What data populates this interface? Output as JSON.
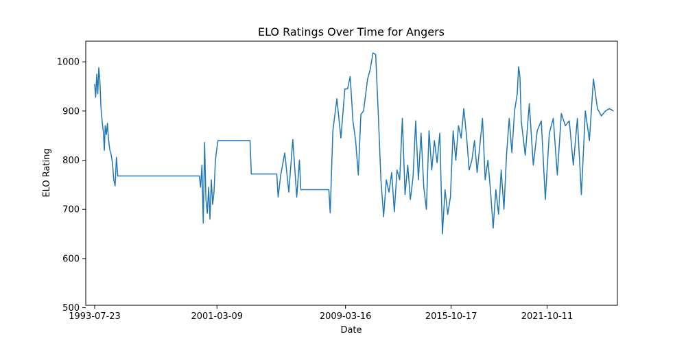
{
  "chart_data": {
    "type": "line",
    "title": "ELO Ratings Over Time for Angers",
    "xlabel": "Date",
    "ylabel": "ELO Rating",
    "x_ticks": [
      "1993-07-23",
      "2001-03-09",
      "2009-03-16",
      "2015-10-17",
      "2021-10-11"
    ],
    "y_ticks": [
      500,
      600,
      700,
      800,
      900,
      1000
    ],
    "xlim": [
      "1993-01-01",
      "2026-03-01"
    ],
    "ylim": [
      505,
      1042
    ],
    "grid": false,
    "legend": "none",
    "series": [
      {
        "color": "#1f77b4",
        "points": [
          [
            "1993-07-23",
            955
          ],
          [
            "1993-08-15",
            928
          ],
          [
            "1993-09-10",
            975
          ],
          [
            "1993-10-02",
            935
          ],
          [
            "1993-10-25",
            988
          ],
          [
            "1993-11-20",
            960
          ],
          [
            "1993-12-15",
            905
          ],
          [
            "1994-01-10",
            878
          ],
          [
            "1994-02-05",
            858
          ],
          [
            "1994-03-01",
            820
          ],
          [
            "1994-03-20",
            870
          ],
          [
            "1994-04-15",
            852
          ],
          [
            "1994-05-10",
            875
          ],
          [
            "1994-06-01",
            845
          ],
          [
            "1994-07-01",
            822
          ],
          [
            "1994-08-01",
            812
          ],
          [
            "1994-09-01",
            795
          ],
          [
            "1994-10-01",
            760
          ],
          [
            "1994-11-01",
            748
          ],
          [
            "1994-12-01",
            806
          ],
          [
            "1995-01-01",
            768
          ],
          [
            "2000-02-01",
            768
          ],
          [
            "2000-03-01",
            745
          ],
          [
            "2000-04-01",
            790
          ],
          [
            "2000-05-01",
            672
          ],
          [
            "2000-06-01",
            836
          ],
          [
            "2000-07-01",
            720
          ],
          [
            "2000-08-01",
            692
          ],
          [
            "2000-09-01",
            745
          ],
          [
            "2000-10-01",
            680
          ],
          [
            "2000-11-01",
            760
          ],
          [
            "2000-12-01",
            710
          ],
          [
            "2001-01-01",
            735
          ],
          [
            "2001-02-01",
            798
          ],
          [
            "2001-03-01",
            820
          ],
          [
            "2001-04-01",
            840
          ],
          [
            "2003-04-01",
            840
          ],
          [
            "2003-05-01",
            772
          ],
          [
            "2004-12-01",
            772
          ],
          [
            "2005-01-01",
            725
          ],
          [
            "2005-03-01",
            770
          ],
          [
            "2005-06-01",
            815
          ],
          [
            "2005-09-01",
            735
          ],
          [
            "2005-12-01",
            842
          ],
          [
            "2006-03-01",
            725
          ],
          [
            "2006-05-01",
            800
          ],
          [
            "2006-06-01",
            740
          ],
          [
            "2008-03-01",
            740
          ],
          [
            "2008-04-01",
            693
          ],
          [
            "2008-06-01",
            860
          ],
          [
            "2008-09-01",
            925
          ],
          [
            "2008-12-01",
            845
          ],
          [
            "2009-03-01",
            945
          ],
          [
            "2009-05-01",
            945
          ],
          [
            "2009-07-01",
            970
          ],
          [
            "2009-09-01",
            880
          ],
          [
            "2009-11-01",
            840
          ],
          [
            "2010-01-01",
            770
          ],
          [
            "2010-03-01",
            893
          ],
          [
            "2010-05-01",
            900
          ],
          [
            "2010-08-01",
            965
          ],
          [
            "2010-10-01",
            985
          ],
          [
            "2010-12-01",
            1018
          ],
          [
            "2011-02-01",
            1015
          ],
          [
            "2011-04-01",
            895
          ],
          [
            "2011-06-01",
            760
          ],
          [
            "2011-08-01",
            685
          ],
          [
            "2011-10-01",
            760
          ],
          [
            "2011-12-01",
            735
          ],
          [
            "2012-02-01",
            775
          ],
          [
            "2012-04-01",
            695
          ],
          [
            "2012-06-01",
            780
          ],
          [
            "2012-08-01",
            760
          ],
          [
            "2012-10-01",
            885
          ],
          [
            "2012-12-01",
            730
          ],
          [
            "2013-02-01",
            790
          ],
          [
            "2013-04-01",
            720
          ],
          [
            "2013-06-01",
            765
          ],
          [
            "2013-08-01",
            880
          ],
          [
            "2013-10-01",
            760
          ],
          [
            "2013-12-01",
            855
          ],
          [
            "2014-02-01",
            745
          ],
          [
            "2014-04-01",
            700
          ],
          [
            "2014-06-01",
            860
          ],
          [
            "2014-08-01",
            780
          ],
          [
            "2014-10-01",
            840
          ],
          [
            "2014-12-01",
            795
          ],
          [
            "2015-02-01",
            855
          ],
          [
            "2015-04-01",
            650
          ],
          [
            "2015-06-01",
            740
          ],
          [
            "2015-08-01",
            690
          ],
          [
            "2015-10-01",
            725
          ],
          [
            "2015-12-01",
            860
          ],
          [
            "2016-02-01",
            800
          ],
          [
            "2016-04-01",
            870
          ],
          [
            "2016-06-01",
            845
          ],
          [
            "2016-08-01",
            905
          ],
          [
            "2016-10-01",
            850
          ],
          [
            "2016-12-01",
            780
          ],
          [
            "2017-02-01",
            800
          ],
          [
            "2017-04-01",
            840
          ],
          [
            "2017-06-01",
            775
          ],
          [
            "2017-08-01",
            830
          ],
          [
            "2017-10-01",
            885
          ],
          [
            "2017-12-01",
            760
          ],
          [
            "2018-02-01",
            800
          ],
          [
            "2018-04-01",
            738
          ],
          [
            "2018-06-01",
            662
          ],
          [
            "2018-08-01",
            740
          ],
          [
            "2018-10-01",
            690
          ],
          [
            "2018-12-01",
            780
          ],
          [
            "2019-02-01",
            700
          ],
          [
            "2019-04-01",
            810
          ],
          [
            "2019-06-01",
            885
          ],
          [
            "2019-08-01",
            815
          ],
          [
            "2019-10-01",
            900
          ],
          [
            "2019-12-01",
            935
          ],
          [
            "2020-01-01",
            990
          ],
          [
            "2020-02-01",
            970
          ],
          [
            "2020-03-01",
            880
          ],
          [
            "2020-06-01",
            810
          ],
          [
            "2020-09-01",
            915
          ],
          [
            "2020-12-01",
            790
          ],
          [
            "2021-03-01",
            860
          ],
          [
            "2021-06-01",
            880
          ],
          [
            "2021-09-01",
            720
          ],
          [
            "2021-12-01",
            855
          ],
          [
            "2022-03-01",
            885
          ],
          [
            "2022-06-01",
            770
          ],
          [
            "2022-09-01",
            895
          ],
          [
            "2022-12-01",
            870
          ],
          [
            "2023-03-01",
            880
          ],
          [
            "2023-06-01",
            790
          ],
          [
            "2023-09-01",
            885
          ],
          [
            "2023-12-01",
            730
          ],
          [
            "2024-03-01",
            900
          ],
          [
            "2024-06-01",
            840
          ],
          [
            "2024-09-01",
            965
          ],
          [
            "2024-12-01",
            905
          ],
          [
            "2025-03-01",
            890
          ],
          [
            "2025-06-01",
            900
          ],
          [
            "2025-09-01",
            905
          ],
          [
            "2025-12-01",
            900
          ]
        ]
      }
    ]
  }
}
